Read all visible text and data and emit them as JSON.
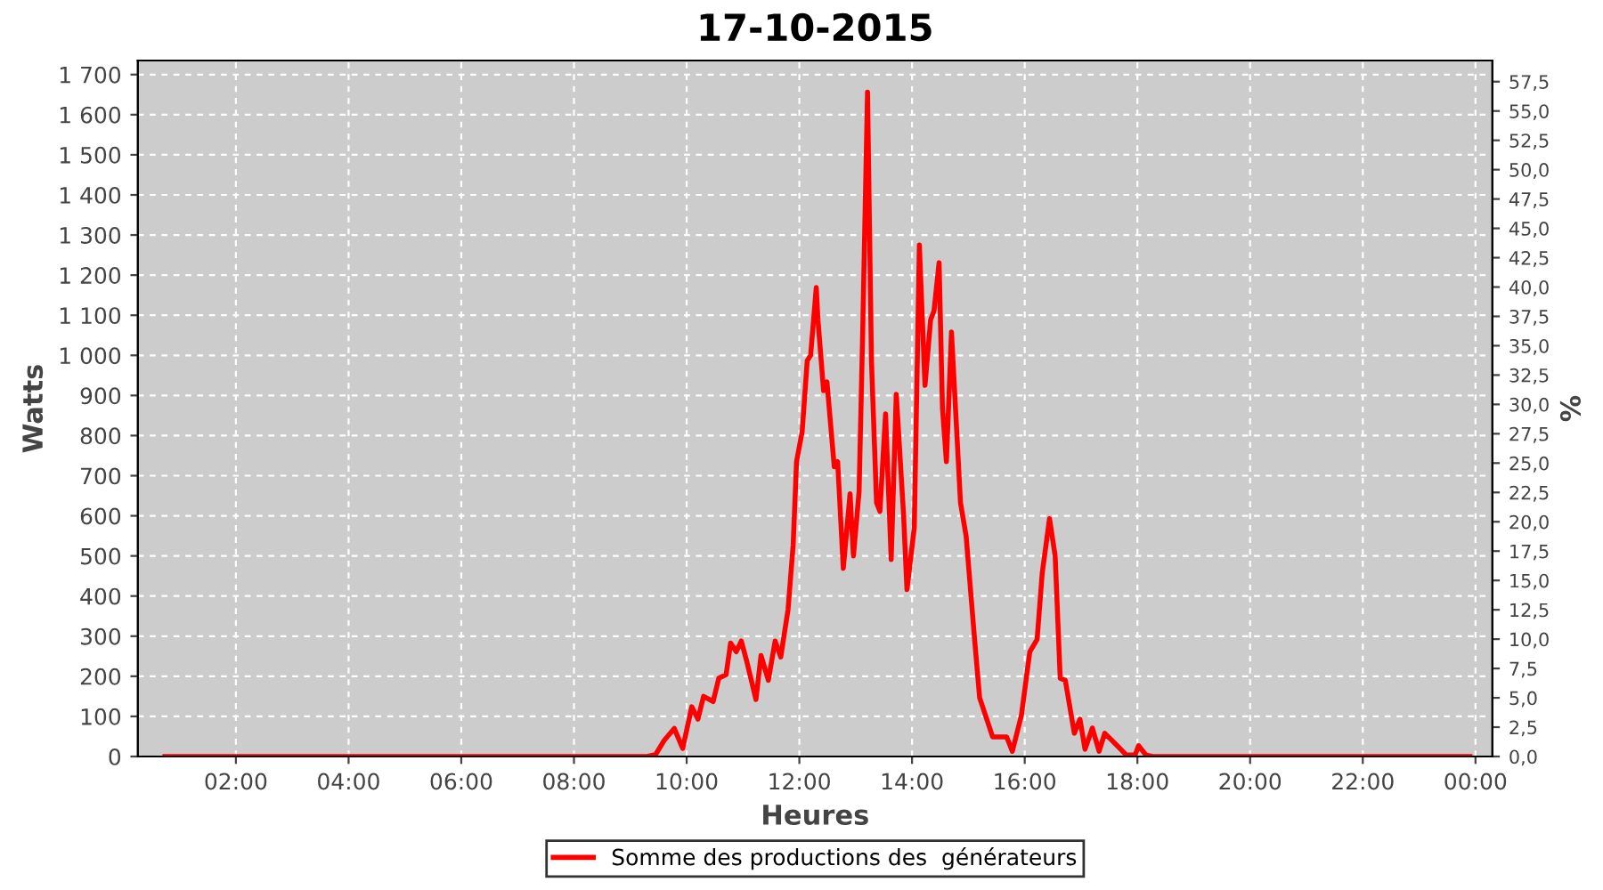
{
  "chart_data": {
    "type": "line",
    "title": "17-10-2015",
    "xlabel": "Heures",
    "ylabel": "Watts",
    "y2label": "%",
    "x": [
      0.74,
      2.0,
      4.0,
      6.0,
      8.0,
      9.0,
      9.3,
      9.45,
      9.6,
      9.78,
      9.93,
      10.09,
      10.2,
      10.3,
      10.47,
      10.57,
      10.7,
      10.78,
      10.88,
      10.97,
      11.07,
      11.23,
      11.32,
      11.45,
      11.57,
      11.67,
      11.8,
      11.89,
      11.95,
      12.05,
      12.14,
      12.2,
      12.3,
      12.33,
      12.43,
      12.49,
      12.62,
      12.68,
      12.78,
      12.9,
      12.96,
      13.06,
      13.12,
      13.21,
      13.28,
      13.37,
      13.43,
      13.53,
      13.63,
      13.72,
      13.85,
      13.91,
      14.04,
      14.13,
      14.23,
      14.33,
      14.39,
      14.48,
      14.54,
      14.61,
      14.7,
      14.8,
      14.86,
      14.96,
      15.11,
      15.2,
      15.43,
      15.68,
      15.78,
      15.94,
      16.09,
      16.22,
      16.31,
      16.44,
      16.54,
      16.63,
      16.72,
      16.88,
      16.98,
      17.07,
      17.2,
      17.32,
      17.42,
      17.64,
      17.8,
      17.96,
      18.02,
      18.15,
      18.27,
      20.0,
      22.0,
      23.9
    ],
    "series": [
      {
        "name": "Somme des productions des  générateurs",
        "color": "#ff0000",
        "values": [
          0,
          0,
          0,
          0,
          0,
          0,
          0,
          5,
          40,
          70,
          20,
          124,
          93,
          150,
          137,
          195,
          204,
          283,
          261,
          288,
          235,
          142,
          252,
          190,
          288,
          248,
          367,
          527,
          735,
          810,
          987,
          1000,
          1169,
          1089,
          912,
          934,
          722,
          735,
          469,
          655,
          500,
          660,
          1031,
          1656,
          987,
          633,
          611,
          854,
          491,
          903,
          602,
          416,
          571,
          1275,
          925,
          1089,
          1111,
          1231,
          868,
          735,
          1058,
          792,
          633,
          549,
          292,
          146,
          49,
          49,
          13,
          102,
          261,
          292,
          456,
          593,
          500,
          195,
          190,
          58,
          93,
          18,
          71,
          13,
          58,
          27,
          4,
          4,
          27,
          4,
          0,
          0,
          0,
          0
        ]
      }
    ],
    "xlim": [
      0.26,
      24.3
    ],
    "xticks": [
      {
        "value": 2,
        "label": "02:00"
      },
      {
        "value": 4,
        "label": "04:00"
      },
      {
        "value": 6,
        "label": "06:00"
      },
      {
        "value": 8,
        "label": "08:00"
      },
      {
        "value": 10,
        "label": "10:00"
      },
      {
        "value": 12,
        "label": "12:00"
      },
      {
        "value": 14,
        "label": "14:00"
      },
      {
        "value": 16,
        "label": "16:00"
      },
      {
        "value": 18,
        "label": "18:00"
      },
      {
        "value": 20,
        "label": "20:00"
      },
      {
        "value": 22,
        "label": "22:00"
      },
      {
        "value": 24,
        "label": "00:00"
      }
    ],
    "ylim": [
      0,
      1735
    ],
    "yticks": [
      0,
      100,
      200,
      300,
      400,
      500,
      600,
      700,
      800,
      900,
      {
        "value": 1000,
        "label": "1 000"
      },
      {
        "value": 1100,
        "label": "1 100"
      },
      {
        "value": 1200,
        "label": "1 200"
      },
      {
        "value": 1300,
        "label": "1 300"
      },
      {
        "value": 1400,
        "label": "1 400"
      },
      {
        "value": 1500,
        "label": "1 500"
      },
      {
        "value": 1600,
        "label": "1 600"
      },
      {
        "value": 1700,
        "label": "1 700"
      }
    ],
    "y2lim": [
      0,
      59.3
    ],
    "y2ticks": [
      {
        "value": 0,
        "label": "0,0"
      },
      {
        "value": 2.5,
        "label": "2,5"
      },
      {
        "value": 5,
        "label": "5,0"
      },
      {
        "value": 7.5,
        "label": "7,5"
      },
      {
        "value": 10,
        "label": "10,0"
      },
      {
        "value": 12.5,
        "label": "12,5"
      },
      {
        "value": 15,
        "label": "15,0"
      },
      {
        "value": 17.5,
        "label": "17,5"
      },
      {
        "value": 20,
        "label": "20,0"
      },
      {
        "value": 22.5,
        "label": "22,5"
      },
      {
        "value": 25,
        "label": "25,0"
      },
      {
        "value": 27.5,
        "label": "27,5"
      },
      {
        "value": 30,
        "label": "30,0"
      },
      {
        "value": 32.5,
        "label": "32,5"
      },
      {
        "value": 35,
        "label": "35,0"
      },
      {
        "value": 37.5,
        "label": "37,5"
      },
      {
        "value": 40,
        "label": "40,0"
      },
      {
        "value": 42.5,
        "label": "42,5"
      },
      {
        "value": 45,
        "label": "45,0"
      },
      {
        "value": 47.5,
        "label": "47,5"
      },
      {
        "value": 50,
        "label": "50,0"
      },
      {
        "value": 52.5,
        "label": "52,5"
      },
      {
        "value": 55,
        "label": "55,0"
      },
      {
        "value": 57.5,
        "label": "57,5"
      }
    ],
    "grid": true,
    "legend": "bottom",
    "line_style": "solid",
    "marker": "none"
  }
}
